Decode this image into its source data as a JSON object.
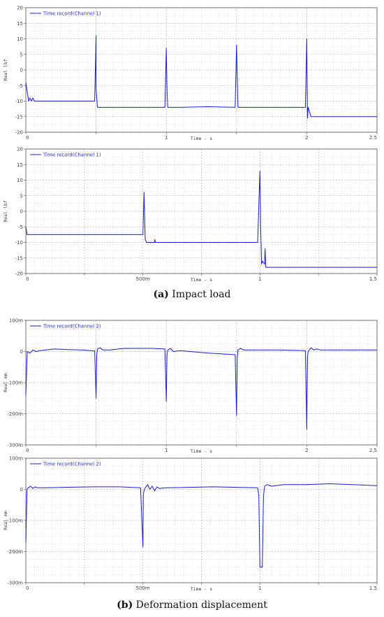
{
  "figure": {
    "caption_a_label": "(a)",
    "caption_a_text": "Impact load",
    "caption_b_label": "(b)",
    "caption_b_text": "Deformation displacement"
  },
  "colors": {
    "series": "#1a1adf",
    "grid": "#c8c8c8",
    "axis": "#555555",
    "background": "#ffffff"
  },
  "chart_data": [
    {
      "type": "line",
      "legend": "Time record(Channel 1)",
      "xlabel": "Time - s",
      "ylabel": "Real lbf",
      "xlim": [
        0,
        2.5
      ],
      "ylim": [
        -20,
        20
      ],
      "xticks": [
        0,
        0.5,
        1,
        1.5,
        2,
        2.5
      ],
      "xtick_labels": [
        "0",
        "",
        "1",
        "",
        "2",
        "2.5"
      ],
      "yticks": [
        -20,
        -15,
        -10,
        -5,
        0,
        5,
        10,
        15,
        20
      ],
      "ytick_labels": [
        "-20",
        "-15",
        "-10",
        "-5",
        "0",
        "5",
        "10",
        "15",
        "20"
      ],
      "grid": true,
      "legend_position": "top-left",
      "series": [
        {
          "x": [
            0,
            0.02,
            0.03,
            0.04,
            0.05,
            0.06,
            0.07,
            0.1,
            0.2,
            0.3,
            0.4,
            0.49,
            0.5,
            0.5,
            0.51,
            0.6,
            0.7,
            0.8,
            0.9,
            0.99,
            1.0,
            1.005,
            1.01,
            1.1,
            1.3,
            1.49,
            1.5,
            1.51,
            1.52,
            1.7,
            1.9,
            1.99,
            2.0,
            2.005,
            2.01,
            2.03,
            2.1,
            2.3,
            2.5
          ],
          "y": [
            -4,
            -10,
            -9,
            -10,
            -9,
            -10,
            -10,
            -10,
            -10,
            -10,
            -10,
            -10,
            11,
            -6,
            -12,
            -12,
            -12,
            -12,
            -12,
            -12,
            7,
            -6,
            -12,
            -12,
            -11.8,
            -12,
            8,
            -12,
            -12,
            -12,
            -12,
            -12,
            10,
            -15.5,
            -12,
            -15,
            -15,
            -15,
            -15
          ]
        }
      ]
    },
    {
      "type": "line",
      "legend": "Time record(Channel 1)",
      "xlabel": "Time - s",
      "ylabel": "Real lbf",
      "xlim": [
        0,
        1.5
      ],
      "ylim": [
        -20,
        20
      ],
      "xticks": [
        0,
        0.25,
        0.5,
        0.75,
        1,
        1.25,
        1.5
      ],
      "xtick_labels": [
        "0",
        "",
        "500m",
        "",
        "1",
        "",
        "1.5"
      ],
      "yticks": [
        -20,
        -15,
        -10,
        -5,
        0,
        5,
        10,
        15,
        20
      ],
      "ytick_labels": [
        "-20",
        "-15",
        "-10",
        "-5",
        "0",
        "5",
        "10",
        "15",
        "20"
      ],
      "grid": true,
      "legend_position": "top-left",
      "series": [
        {
          "x": [
            0,
            0.005,
            0.1,
            0.2,
            0.3,
            0.4,
            0.5,
            0.505,
            0.51,
            0.515,
            0.53,
            0.55,
            0.551,
            0.553,
            0.6,
            0.8,
            0.99,
            1.0,
            1.003,
            1.007,
            1.01,
            1.015,
            1.02,
            1.022,
            1.025,
            1.03,
            1.2,
            1.4,
            1.5
          ],
          "y": [
            -5,
            -7.5,
            -7.5,
            -7.5,
            -7.5,
            -7.5,
            -7.5,
            6,
            -9,
            -10,
            -10,
            -10,
            -9,
            -10,
            -10,
            -10,
            -10,
            13,
            -5,
            -17,
            -16,
            -16.5,
            -17,
            -12,
            -18,
            -18,
            -18,
            -18,
            -18
          ]
        }
      ]
    },
    {
      "type": "line",
      "legend": "Time record(Channel 2)",
      "xlabel": "Time - s",
      "ylabel": "Real mm",
      "xlim": [
        0,
        2.5
      ],
      "ylim": [
        -300,
        100
      ],
      "xticks": [
        0,
        0.5,
        1,
        1.5,
        2,
        2.5
      ],
      "xtick_labels": [
        "0",
        "",
        "1",
        "",
        "2",
        "2.5"
      ],
      "yticks": [
        -300,
        -200,
        -100,
        0,
        100
      ],
      "ytick_labels": [
        "-300m",
        "-200m",
        "-100m",
        "0",
        "100m"
      ],
      "grid": true,
      "legend_position": "top-left",
      "series": [
        {
          "x": [
            0,
            0.01,
            0.03,
            0.05,
            0.07,
            0.1,
            0.2,
            0.3,
            0.4,
            0.49,
            0.5,
            0.505,
            0.51,
            0.53,
            0.55,
            0.6,
            0.7,
            0.8,
            0.9,
            0.99,
            1.0,
            1.005,
            1.01,
            1.03,
            1.05,
            1.1,
            1.3,
            1.49,
            1.5,
            1.505,
            1.51,
            1.53,
            1.55,
            1.6,
            1.8,
            1.99,
            2.0,
            2.005,
            2.01,
            2.03,
            2.05,
            2.07,
            2.1,
            2.3,
            2.5
          ],
          "y": [
            -140,
            0,
            -5,
            5,
            0,
            3,
            8,
            6,
            5,
            2,
            -150,
            -10,
            8,
            12,
            5,
            5,
            10,
            10,
            10,
            8,
            -160,
            -10,
            5,
            10,
            0,
            3,
            -5,
            -10,
            -205,
            -20,
            5,
            10,
            5,
            5,
            5,
            3,
            -250,
            -20,
            0,
            12,
            5,
            8,
            5,
            5,
            5
          ]
        }
      ]
    },
    {
      "type": "line",
      "legend": "Time record(Channel 2)",
      "xlabel": "Time - s",
      "ylabel": "Real mm",
      "xlim": [
        0,
        1.5
      ],
      "ylim": [
        -300,
        100
      ],
      "xticks": [
        0,
        0.25,
        0.5,
        0.75,
        1,
        1.25,
        1.5
      ],
      "xtick_labels": [
        "0",
        "",
        "500m",
        "",
        "1",
        "",
        "1.5"
      ],
      "yticks": [
        -300,
        -200,
        -100,
        0,
        100
      ],
      "ytick_labels": [
        "-300m",
        "-200m",
        "-100m",
        "0",
        "100m"
      ],
      "grid": true,
      "legend_position": "top-left",
      "series": [
        {
          "x": [
            0,
            0.005,
            0.01,
            0.02,
            0.03,
            0.04,
            0.05,
            0.08,
            0.2,
            0.3,
            0.4,
            0.49,
            0.5,
            0.502,
            0.505,
            0.51,
            0.52,
            0.53,
            0.54,
            0.55,
            0.56,
            0.57,
            0.6,
            0.8,
            0.99,
            0.995,
            1.0,
            1.003,
            1.01,
            1.015,
            1.02,
            1.03,
            1.05,
            1.1,
            1.2,
            1.3,
            1.5
          ],
          "y": [
            -170,
            0,
            5,
            10,
            3,
            8,
            5,
            5,
            7,
            8,
            8,
            5,
            -185,
            -15,
            -5,
            5,
            15,
            0,
            10,
            -5,
            8,
            3,
            5,
            8,
            5,
            -20,
            -250,
            -250,
            -250,
            -20,
            10,
            15,
            10,
            15,
            15,
            18,
            12
          ]
        }
      ]
    }
  ]
}
